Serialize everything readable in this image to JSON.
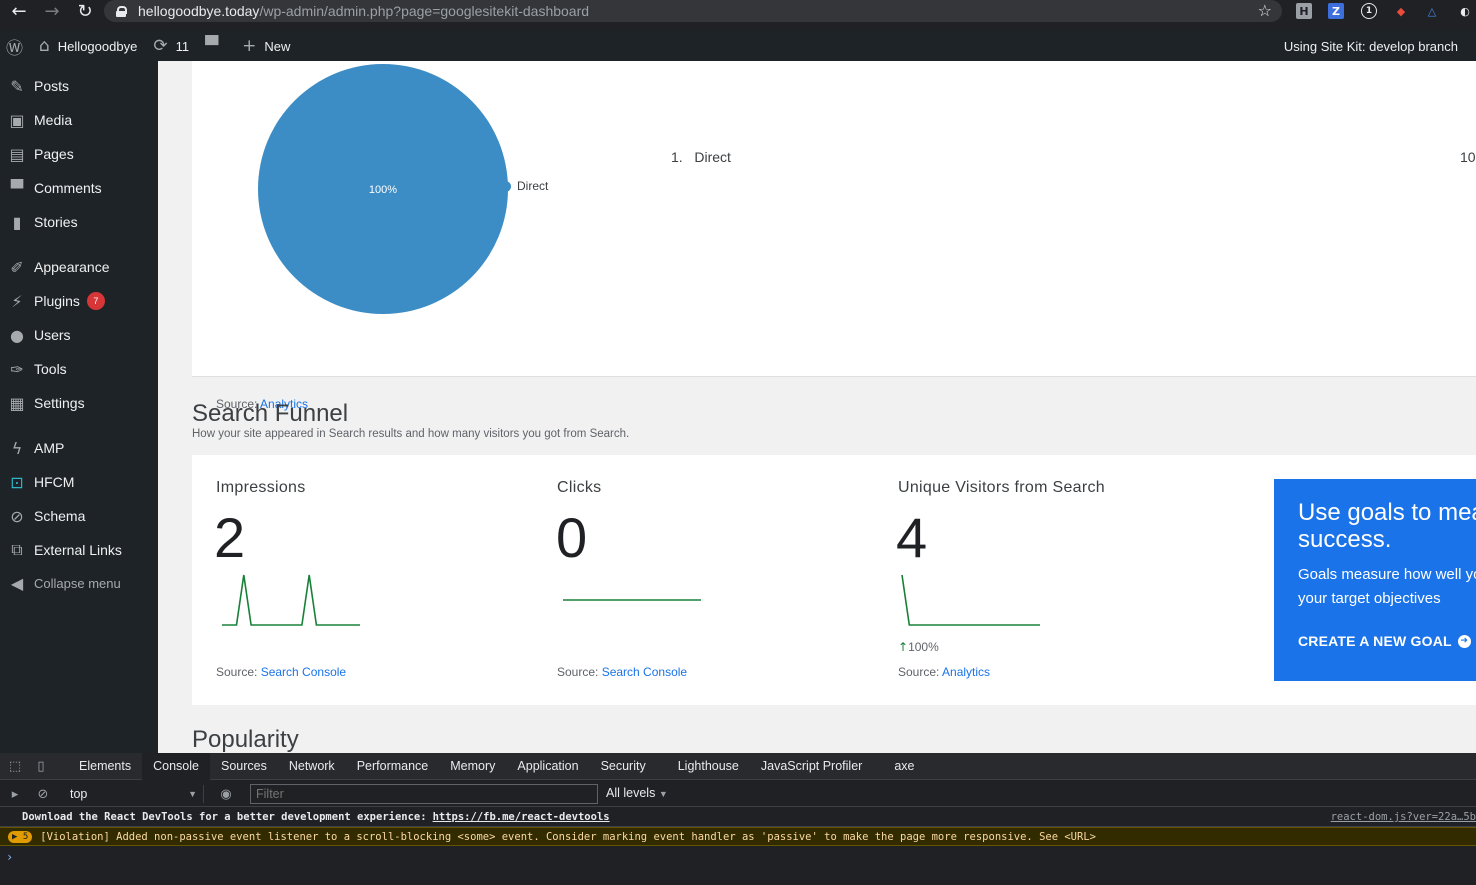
{
  "browser": {
    "url_host": "hellogoodbye.today",
    "url_path": "/wp-admin/admin.php?page=googlesitekit-dashboard"
  },
  "adminbar": {
    "site_name": "Hellogoodbye",
    "updates_count": "11",
    "new_label": "New",
    "right_text": "Using Site Kit: develop branch"
  },
  "sidebar": {
    "items": [
      {
        "label": "Posts",
        "icon": "pushpin-icon"
      },
      {
        "label": "Media",
        "icon": "media-icon"
      },
      {
        "label": "Pages",
        "icon": "pages-icon"
      },
      {
        "label": "Comments",
        "icon": "comments-icon"
      },
      {
        "label": "Stories",
        "icon": "stories-icon"
      },
      {
        "label": "Appearance",
        "icon": "appearance-icon"
      },
      {
        "label": "Plugins",
        "icon": "plugins-icon",
        "badge": "7"
      },
      {
        "label": "Users",
        "icon": "users-icon"
      },
      {
        "label": "Tools",
        "icon": "tools-icon"
      },
      {
        "label": "Settings",
        "icon": "settings-icon"
      },
      {
        "label": "AMP",
        "icon": "amp-icon"
      },
      {
        "label": "HFCM",
        "icon": "hfcm-icon"
      },
      {
        "label": "Schema",
        "icon": "schema-icon"
      },
      {
        "label": "External Links",
        "icon": "external-links-icon"
      },
      {
        "label": "Collapse menu",
        "icon": "collapse-icon"
      }
    ]
  },
  "traffic": {
    "pie_label": "100%",
    "legend_label": "Direct",
    "list_number": "1.",
    "list_label": "Direct",
    "list_value": "10",
    "source_prefix": "Source:",
    "source_link": "Analytics"
  },
  "funnel": {
    "title": "Search Funnel",
    "subtitle": "How your site appeared in Search results and how many visitors you got from Search.",
    "metrics": [
      {
        "label": "Impressions",
        "value": "2",
        "source_prefix": "Source:",
        "source_link": "Search Console"
      },
      {
        "label": "Clicks",
        "value": "0",
        "source_prefix": "Source:",
        "source_link": "Search Console"
      },
      {
        "label": "Unique Visitors from Search",
        "value": "4",
        "change": "100%",
        "source_prefix": "Source:",
        "source_link": "Analytics"
      }
    ],
    "cta": {
      "title": "Use goals to measure success.",
      "body": "Goals measure how well your app fulfills your target objectives",
      "link": "CREATE A NEW GOAL"
    }
  },
  "popularity": {
    "title": "Popularity"
  },
  "devtools": {
    "tabs": [
      "Elements",
      "Console",
      "Sources",
      "Network",
      "Performance",
      "Memory",
      "Application",
      "Security",
      "Lighthouse",
      "JavaScript Profiler",
      "axe"
    ],
    "context": "top",
    "filter_placeholder": "Filter",
    "levels": "All levels",
    "log1": "Download the React DevTools for a better development experience:",
    "log1_link": "https://fb.me/react-devtools",
    "log1_source": "react-dom.js?ver=22a…5b",
    "warn_count": "5",
    "log2": "[Violation] Added non-passive event listener to a scroll-blocking <some> event. Consider marking event handler as 'passive' to make the page more responsive. See <URL>"
  },
  "chart_data": [
    {
      "type": "pie",
      "slices": [
        {
          "label": "Direct",
          "value": 100
        }
      ],
      "data_label": "100%",
      "color": "#3c8dc5"
    },
    {
      "type": "line",
      "title": "Impressions",
      "values": [
        0,
        0,
        0,
        1,
        0,
        0,
        0,
        0,
        0,
        0,
        0,
        0,
        1,
        0,
        0,
        0,
        0,
        0,
        0,
        0
      ],
      "color": "#188038"
    },
    {
      "type": "line",
      "title": "Clicks",
      "values": [
        0,
        0,
        0,
        0,
        0,
        0,
        0,
        0,
        0,
        0,
        0,
        0,
        0,
        0,
        0,
        0,
        0,
        0,
        0,
        0
      ],
      "color": "#188038"
    },
    {
      "type": "line",
      "title": "Unique Visitors from Search",
      "values": [
        4,
        0,
        0,
        0,
        0,
        0,
        0,
        0,
        0,
        0,
        0,
        0,
        0,
        0,
        0,
        0,
        0,
        0,
        0,
        0
      ],
      "color": "#188038"
    }
  ]
}
